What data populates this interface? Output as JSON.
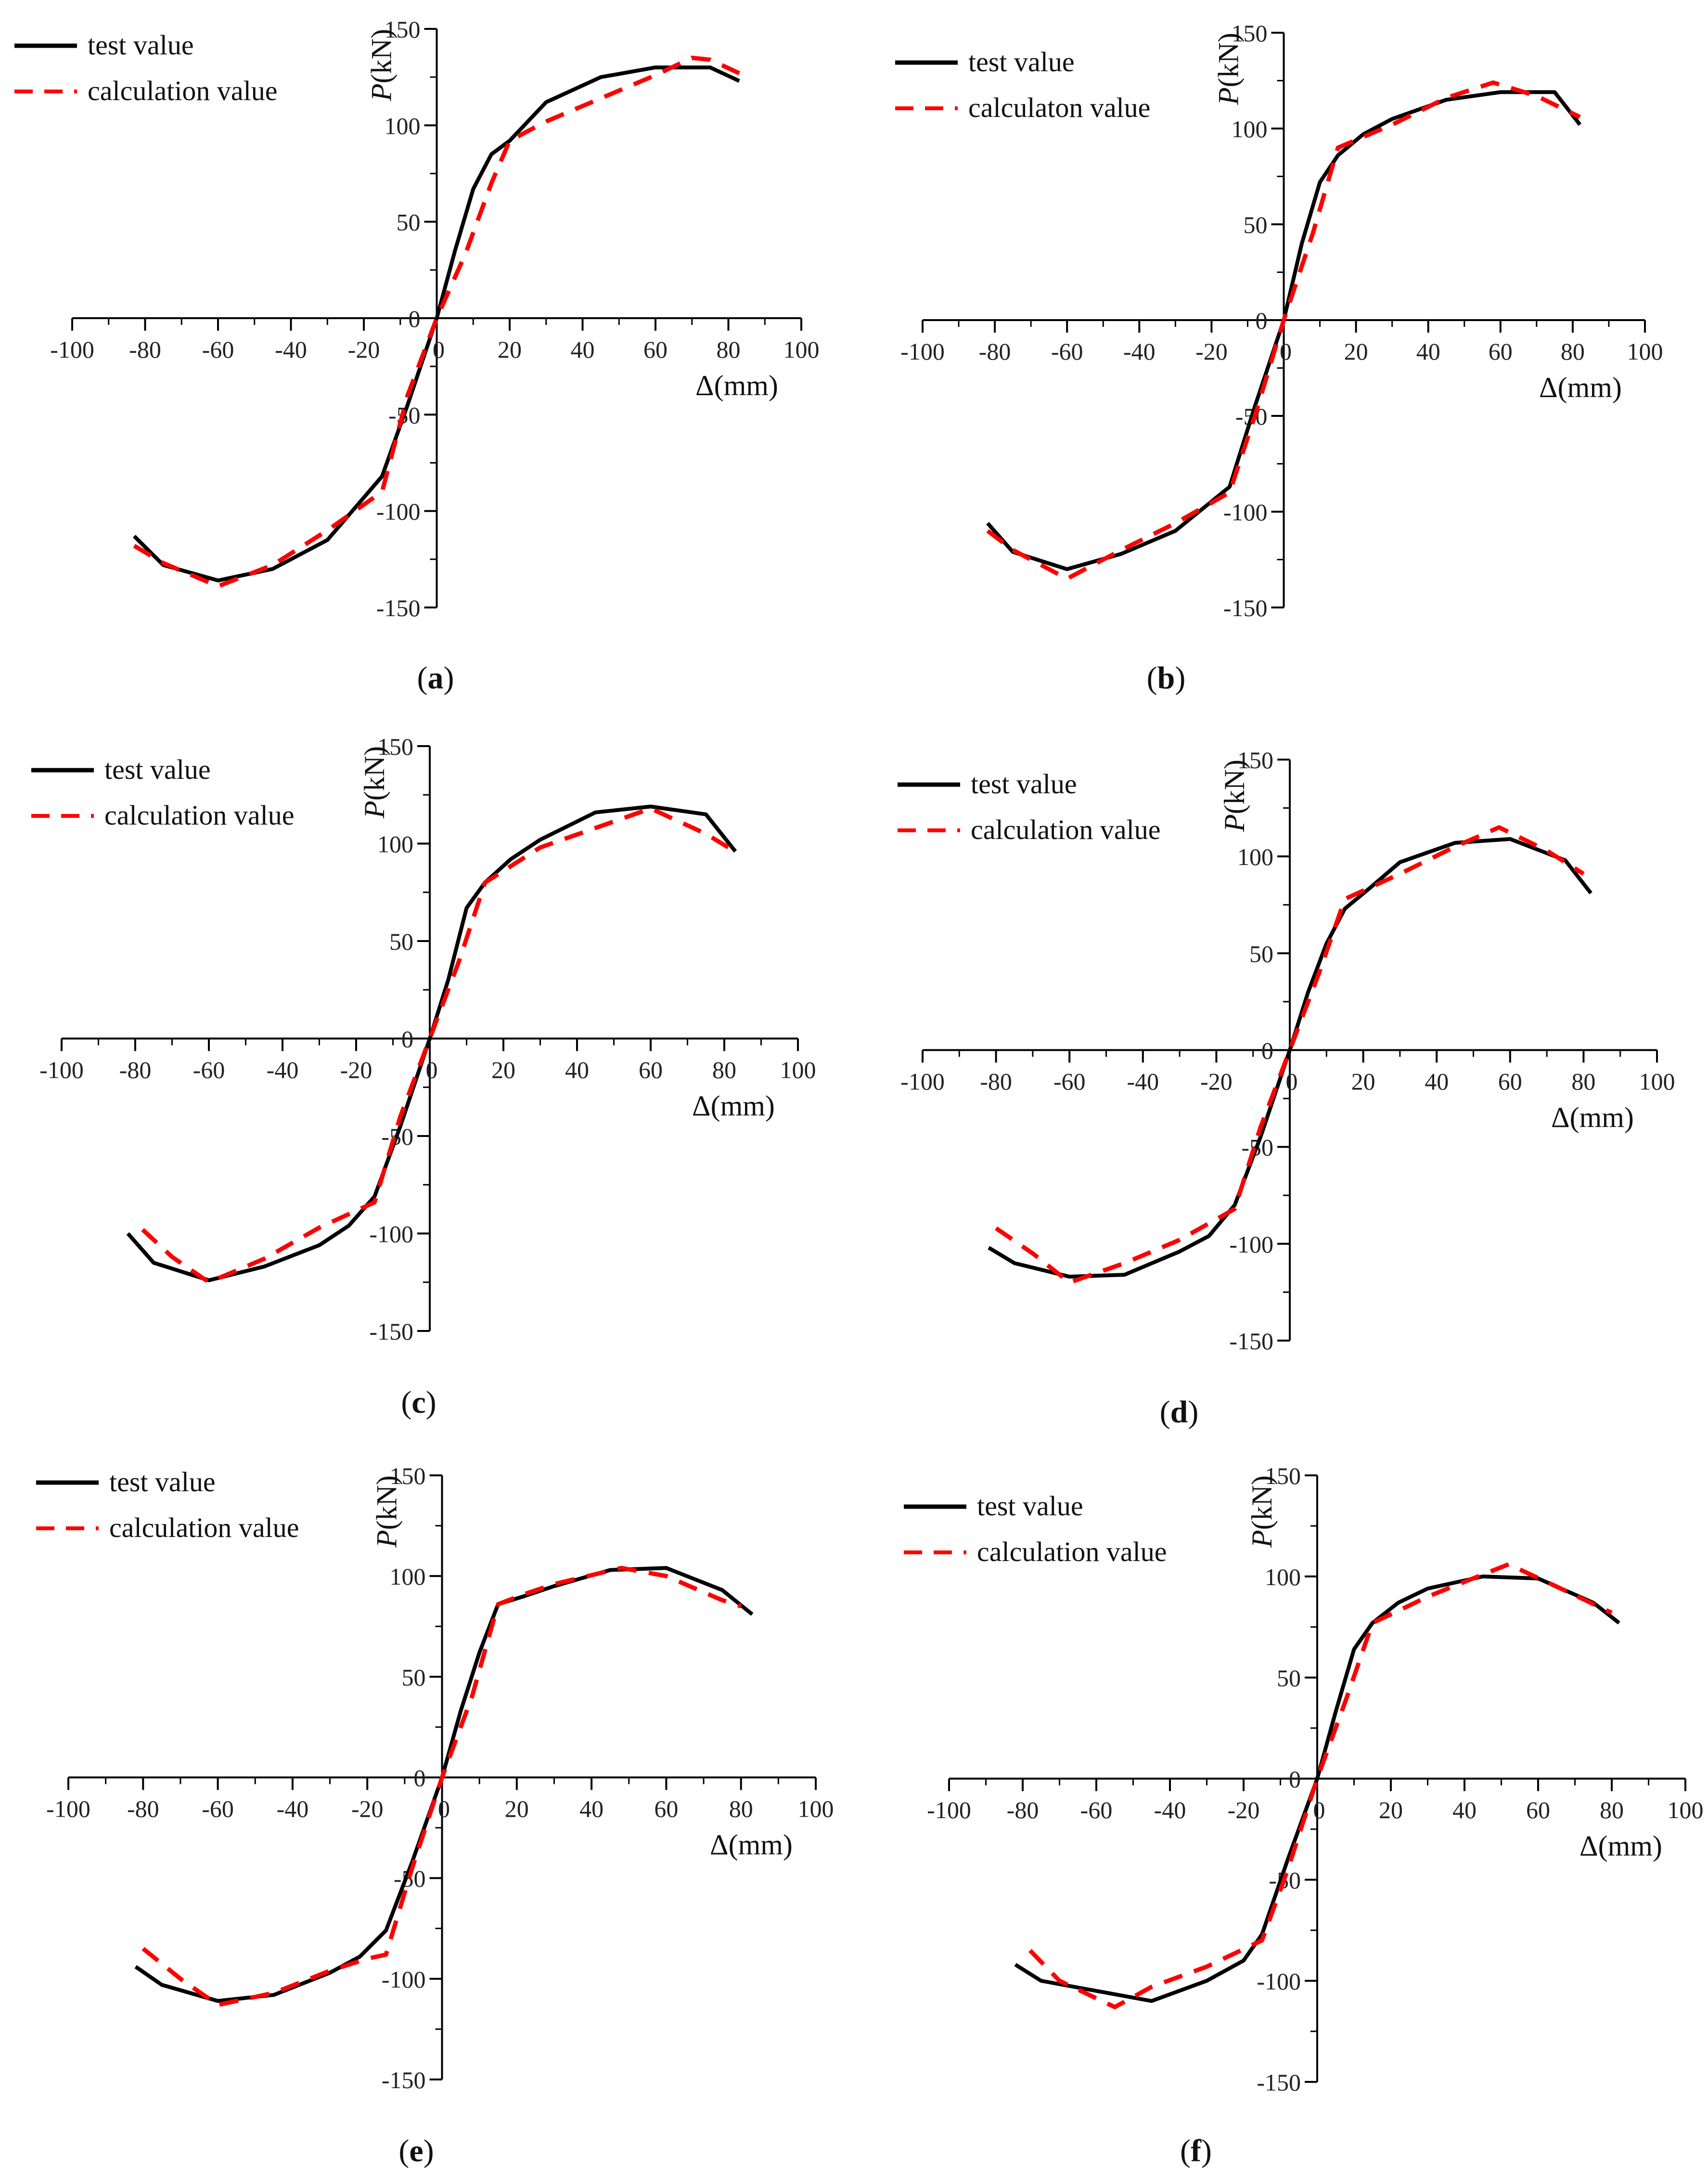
{
  "chart_data": [
    {
      "panel": "a",
      "type": "line",
      "xlabel": "Δ(mm)",
      "ylabel": "P(kN)",
      "xlim": [
        -100,
        100
      ],
      "ylim": [
        -150,
        150
      ],
      "x_ticks": [
        "-100",
        "-80",
        "-60",
        "-40",
        "-20",
        "0",
        "20",
        "40",
        "60",
        "80",
        "100"
      ],
      "y_ticks": [
        "150",
        "100",
        "50",
        "0",
        "-50",
        "-100",
        "-150"
      ],
      "legend": [
        "test value",
        "calculation value"
      ],
      "series": [
        {
          "name": "test value",
          "style": "solid",
          "color": "#000000",
          "points": [
            [
              -83,
              -113
            ],
            [
              -75,
              -128
            ],
            [
              -60,
              -136
            ],
            [
              -45,
              -130
            ],
            [
              -30,
              -115
            ],
            [
              -15,
              -82
            ],
            [
              -8,
              -45
            ],
            [
              0,
              0
            ],
            [
              5,
              35
            ],
            [
              10,
              67
            ],
            [
              15,
              85
            ],
            [
              20,
              92
            ],
            [
              30,
              112
            ],
            [
              45,
              125
            ],
            [
              60,
              130
            ],
            [
              75,
              130
            ],
            [
              83,
              123
            ]
          ]
        },
        {
          "name": "calculation value",
          "style": "dashed",
          "color": "#ff0000",
          "points": [
            [
              -83,
              -118
            ],
            [
              -75,
              -127
            ],
            [
              -60,
              -139
            ],
            [
              -45,
              -128
            ],
            [
              -30,
              -110
            ],
            [
              -15,
              -90
            ],
            [
              -8,
              -40
            ],
            [
              0,
              0
            ],
            [
              8,
              34
            ],
            [
              15,
              70
            ],
            [
              20,
              92
            ],
            [
              30,
              102
            ],
            [
              45,
              114
            ],
            [
              60,
              126
            ],
            [
              70,
              135
            ],
            [
              75,
              134
            ],
            [
              83,
              127
            ]
          ]
        }
      ]
    },
    {
      "panel": "b",
      "type": "line",
      "xlabel": "Δ(mm)",
      "ylabel": "P(kN)",
      "xlim": [
        -100,
        100
      ],
      "ylim": [
        -150,
        150
      ],
      "x_ticks": [
        "-100",
        "-80",
        "-60",
        "-40",
        "-20",
        "0",
        "20",
        "40",
        "60",
        "80",
        "100"
      ],
      "y_ticks": [
        "150",
        "100",
        "50",
        "0",
        "-50",
        "-100",
        "-150"
      ],
      "legend": [
        "test value",
        "calculaton value"
      ],
      "series": [
        {
          "name": "test value",
          "style": "solid",
          "color": "#000000",
          "points": [
            [
              -82,
              -106
            ],
            [
              -75,
              -121
            ],
            [
              -60,
              -130
            ],
            [
              -45,
              -122
            ],
            [
              -30,
              -110
            ],
            [
              -15,
              -87
            ],
            [
              -8,
              -45
            ],
            [
              0,
              0
            ],
            [
              5,
              40
            ],
            [
              10,
              72
            ],
            [
              15,
              86
            ],
            [
              22,
              97
            ],
            [
              30,
              105
            ],
            [
              45,
              115
            ],
            [
              60,
              119
            ],
            [
              75,
              119
            ],
            [
              82,
              102
            ]
          ]
        },
        {
          "name": "calculaton value",
          "style": "dashed",
          "color": "#ff0000",
          "points": [
            [
              -82,
              -110
            ],
            [
              -75,
              -120
            ],
            [
              -60,
              -135
            ],
            [
              -45,
              -120
            ],
            [
              -30,
              -106
            ],
            [
              -15,
              -90
            ],
            [
              -8,
              -50
            ],
            [
              0,
              0
            ],
            [
              8,
              45
            ],
            [
              15,
              90
            ],
            [
              30,
              102
            ],
            [
              45,
              116
            ],
            [
              58,
              124
            ],
            [
              70,
              117
            ],
            [
              82,
              106
            ]
          ]
        }
      ]
    },
    {
      "panel": "c",
      "type": "line",
      "xlabel": "Δ(mm)",
      "ylabel": "P(kN)",
      "xlim": [
        -100,
        100
      ],
      "ylim": [
        -150,
        150
      ],
      "x_ticks": [
        "-100",
        "-80",
        "-60",
        "-40",
        "-20",
        "0",
        "20",
        "40",
        "60",
        "80",
        "100"
      ],
      "y_ticks": [
        "150",
        "100",
        "50",
        "0",
        "-50",
        "-100",
        "-150"
      ],
      "legend": [
        "test value",
        "calculation value"
      ],
      "series": [
        {
          "name": "test value",
          "style": "solid",
          "color": "#000000",
          "points": [
            [
              -82,
              -100
            ],
            [
              -75,
              -115
            ],
            [
              -60,
              -124
            ],
            [
              -45,
              -117
            ],
            [
              -30,
              -106
            ],
            [
              -22,
              -96
            ],
            [
              -15,
              -81
            ],
            [
              -8,
              -45
            ],
            [
              0,
              0
            ],
            [
              5,
              30
            ],
            [
              10,
              67
            ],
            [
              15,
              80
            ],
            [
              22,
              92
            ],
            [
              30,
              102
            ],
            [
              45,
              116
            ],
            [
              60,
              119
            ],
            [
              75,
              115
            ],
            [
              83,
              96
            ]
          ]
        },
        {
          "name": "calculation value",
          "style": "dashed",
          "color": "#ff0000",
          "points": [
            [
              -78,
              -98
            ],
            [
              -70,
              -112
            ],
            [
              -60,
              -125
            ],
            [
              -45,
              -113
            ],
            [
              -30,
              -97
            ],
            [
              -15,
              -84
            ],
            [
              -8,
              -40
            ],
            [
              0,
              0
            ],
            [
              8,
              40
            ],
            [
              15,
              80
            ],
            [
              30,
              98
            ],
            [
              45,
              108
            ],
            [
              60,
              118
            ],
            [
              75,
              105
            ],
            [
              82,
              97
            ]
          ]
        }
      ]
    },
    {
      "panel": "d",
      "type": "line",
      "xlabel": "Δ(mm)",
      "ylabel": "P(kN)",
      "xlim": [
        -100,
        100
      ],
      "ylim": [
        -150,
        150
      ],
      "x_ticks": [
        "-100",
        "-80",
        "-60",
        "-40",
        "-20",
        "0",
        "20",
        "40",
        "60",
        "80",
        "100"
      ],
      "y_ticks": [
        "150",
        "100",
        "50",
        "0",
        "-50",
        "-100",
        "-150"
      ],
      "legend": [
        "test value",
        "calculation value"
      ],
      "series": [
        {
          "name": "test value",
          "style": "solid",
          "color": "#000000",
          "points": [
            [
              -82,
              -102
            ],
            [
              -75,
              -110
            ],
            [
              -60,
              -117
            ],
            [
              -45,
              -116
            ],
            [
              -30,
              -104
            ],
            [
              -22,
              -96
            ],
            [
              -15,
              -80
            ],
            [
              -8,
              -45
            ],
            [
              0,
              0
            ],
            [
              5,
              30
            ],
            [
              10,
              55
            ],
            [
              15,
              73
            ],
            [
              22,
              84
            ],
            [
              30,
              97
            ],
            [
              45,
              107
            ],
            [
              60,
              109
            ],
            [
              75,
              98
            ],
            [
              82,
              81
            ]
          ]
        },
        {
          "name": "calculation value",
          "style": "dashed",
          "color": "#ff0000",
          "points": [
            [
              -80,
              -92
            ],
            [
              -70,
              -105
            ],
            [
              -60,
              -120
            ],
            [
              -45,
              -110
            ],
            [
              -30,
              -98
            ],
            [
              -15,
              -82
            ],
            [
              -8,
              -40
            ],
            [
              0,
              0
            ],
            [
              8,
              40
            ],
            [
              15,
              78
            ],
            [
              30,
              91
            ],
            [
              45,
              105
            ],
            [
              57,
              115
            ],
            [
              70,
              103
            ],
            [
              80,
              91
            ]
          ]
        }
      ]
    },
    {
      "panel": "e",
      "type": "line",
      "xlabel": "Δ(mm)",
      "ylabel": "P(kN)",
      "xlim": [
        -100,
        100
      ],
      "ylim": [
        -150,
        150
      ],
      "x_ticks": [
        "-100",
        "-80",
        "-60",
        "-40",
        "-20",
        "0",
        "20",
        "40",
        "60",
        "80",
        "100"
      ],
      "y_ticks": [
        "150",
        "100",
        "50",
        "0",
        "-50",
        "-100",
        "-150"
      ],
      "legend": [
        "test value",
        "calculation value"
      ],
      "series": [
        {
          "name": "test value",
          "style": "solid",
          "color": "#000000",
          "points": [
            [
              -82,
              -94
            ],
            [
              -75,
              -103
            ],
            [
              -60,
              -111
            ],
            [
              -45,
              -108
            ],
            [
              -30,
              -97
            ],
            [
              -22,
              -89
            ],
            [
              -15,
              -76
            ],
            [
              -8,
              -42
            ],
            [
              0,
              0
            ],
            [
              5,
              33
            ],
            [
              10,
              62
            ],
            [
              15,
              86
            ],
            [
              22,
              90
            ],
            [
              30,
              95
            ],
            [
              45,
              103
            ],
            [
              60,
              104
            ],
            [
              75,
              93
            ],
            [
              83,
              81
            ]
          ]
        },
        {
          "name": "calculation value",
          "style": "dashed",
          "color": "#ff0000",
          "points": [
            [
              -80,
              -85
            ],
            [
              -70,
              -100
            ],
            [
              -60,
              -113
            ],
            [
              -45,
              -107
            ],
            [
              -30,
              -96
            ],
            [
              -20,
              -90
            ],
            [
              -15,
              -88
            ],
            [
              -8,
              -45
            ],
            [
              0,
              0
            ],
            [
              8,
              40
            ],
            [
              15,
              86
            ],
            [
              22,
              91
            ],
            [
              30,
              96
            ],
            [
              48,
              104
            ],
            [
              60,
              100
            ],
            [
              75,
              88
            ],
            [
              80,
              85
            ]
          ]
        }
      ]
    },
    {
      "panel": "f",
      "type": "line",
      "xlabel": "Δ(mm)",
      "ylabel": "P(kN)",
      "xlim": [
        -100,
        100
      ],
      "ylim": [
        -150,
        150
      ],
      "x_ticks": [
        "-100",
        "-80",
        "-60",
        "-40",
        "-20",
        "0",
        "20",
        "40",
        "60",
        "80",
        "100"
      ],
      "y_ticks": [
        "150",
        "100",
        "50",
        "0",
        "-50",
        "-100",
        "-150"
      ],
      "legend": [
        "test value",
        "calculation value"
      ],
      "series": [
        {
          "name": "test value",
          "style": "solid",
          "color": "#000000",
          "points": [
            [
              -82,
              -92
            ],
            [
              -75,
              -100
            ],
            [
              -60,
              -105
            ],
            [
              -45,
              -110
            ],
            [
              -30,
              -100
            ],
            [
              -20,
              -90
            ],
            [
              -15,
              -77
            ],
            [
              -8,
              -40
            ],
            [
              0,
              0
            ],
            [
              5,
              33
            ],
            [
              10,
              64
            ],
            [
              15,
              77
            ],
            [
              22,
              87
            ],
            [
              30,
              94
            ],
            [
              45,
              100
            ],
            [
              60,
              99
            ],
            [
              75,
              87
            ],
            [
              82,
              77
            ]
          ]
        },
        {
          "name": "calculation value",
          "style": "dashed",
          "color": "#ff0000",
          "points": [
            [
              -78,
              -85
            ],
            [
              -70,
              -100
            ],
            [
              -55,
              -113
            ],
            [
              -45,
              -103
            ],
            [
              -30,
              -93
            ],
            [
              -15,
              -80
            ],
            [
              -8,
              -45
            ],
            [
              0,
              0
            ],
            [
              8,
              40
            ],
            [
              15,
              77
            ],
            [
              22,
              83
            ],
            [
              30,
              90
            ],
            [
              45,
              101
            ],
            [
              52,
              106
            ],
            [
              65,
              95
            ],
            [
              80,
              82
            ]
          ]
        }
      ]
    }
  ],
  "panel_labels": [
    {
      "open": "(",
      "letter": "a",
      "close": ")"
    },
    {
      "open": "(",
      "letter": "b",
      "close": ")"
    },
    {
      "open": "(",
      "letter": "c",
      "close": ")"
    },
    {
      "open": "(",
      "letter": "d",
      "close": ")"
    },
    {
      "open": "(",
      "letter": "e",
      "close": ")"
    },
    {
      "open": "(",
      "letter": "f",
      "close": ")"
    }
  ],
  "axis_titles": {
    "y_italic": "P",
    "y_rest": "(kN)",
    "x": "Δ(mm)"
  },
  "colors": {
    "test": "#000000",
    "calculation": "#ff0000",
    "axis": "#000000"
  }
}
